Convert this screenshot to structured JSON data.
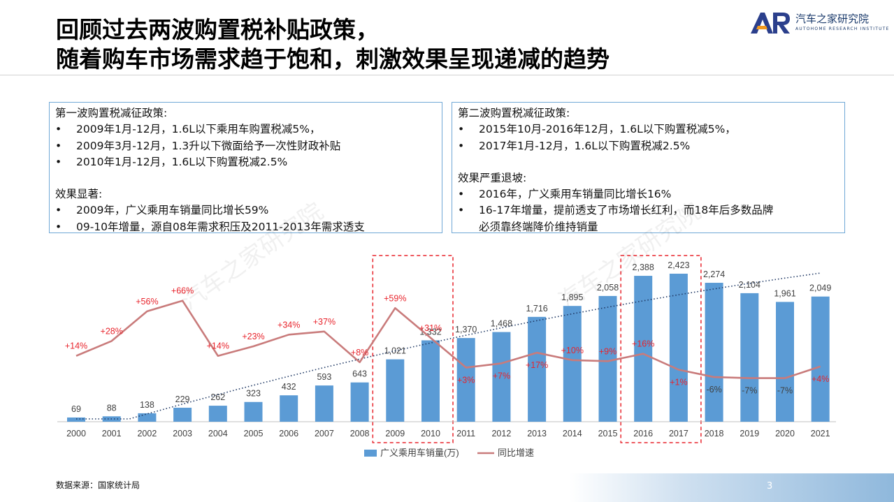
{
  "title": {
    "line1": "回顾过去两波购置税补贴政策，",
    "line2": "随着购车市场需求趋于饱和，刺激效果呈现递减的趋势"
  },
  "logo": {
    "mark": "AR",
    "name_cn": "汽车之家研究院",
    "name_en": "AUTOHOME RESEARCH INSTITUTE"
  },
  "watermark": "汽车之家研究院",
  "box1": {
    "heading": "第一波购置税减征政策:",
    "items": [
      "2009年1月-12月，1.6L以下乘用车购置税减5%，",
      "2009年3月-12月，1.3升以下微面给予一次性财政补贴",
      "2010年1月-12月，1.6L以下购置税减2.5%"
    ],
    "effect_heading": "效果显著:",
    "effect_items": [
      "2009年，广义乘用车销量同比增长59%",
      "09-10年增量，源自08年需求积压及2011-2013年需求透支"
    ]
  },
  "box2": {
    "heading": "第二波购置税减征政策:",
    "items": [
      "2015年10月-2016年12月，1.6L以下购置税减5%，",
      "2017年1月-12月，1.6L以下购置税减2.5%"
    ],
    "effect_heading": "效果严重退坡:",
    "effect_items": [
      "2016年，广义乘用车销量同比增长16%",
      "16-17年增量，提前透支了市场增长红利，而18年后多数品牌",
      "必须靠终端降价维持销量"
    ]
  },
  "bullet": "•",
  "chart_data": {
    "type": "bar",
    "categories": [
      "2000",
      "2001",
      "2002",
      "2003",
      "2004",
      "2005",
      "2006",
      "2007",
      "2008",
      "2009",
      "2010",
      "2011",
      "2012",
      "2013",
      "2014",
      "2015",
      "2016",
      "2017",
      "2018",
      "2019",
      "2020",
      "2021"
    ],
    "series": [
      {
        "name": "广义乘用车销量(万)",
        "type": "bar",
        "values": [
          69,
          88,
          138,
          229,
          262,
          323,
          432,
          593,
          643,
          1021,
          1332,
          1370,
          1468,
          1716,
          1895,
          2058,
          2388,
          2423,
          2274,
          2104,
          1961,
          2049
        ],
        "labels": [
          "69",
          "88",
          "138",
          "229",
          "262",
          "323",
          "432",
          "593",
          "643",
          "1,021",
          "1,332",
          "1,370",
          "1,468",
          "1,716",
          "1,895",
          "2,058",
          "2,388",
          "2,423",
          "2,274",
          "2,104",
          "1,961",
          "2,049"
        ],
        "color": "#5b9bd5"
      },
      {
        "name": "同比增速",
        "type": "line",
        "values": [
          14,
          28,
          56,
          66,
          14,
          23,
          34,
          37,
          8,
          59,
          31,
          3,
          7,
          17,
          10,
          9,
          16,
          1,
          -6,
          -7,
          -7,
          4
        ],
        "labels": [
          "+14%",
          "+28%",
          "+56%",
          "+66%",
          "+14%",
          "+23%",
          "+34%",
          "+37%",
          "+8%",
          "+59%",
          "+31%",
          "+3%",
          "+7%",
          "+17%",
          "+10%",
          "+9%",
          "+16%",
          "+1%",
          "-6%",
          "-7%",
          "-7%",
          "+4%"
        ],
        "color": "#c97b7b",
        "label_color": "#e8242c"
      }
    ],
    "trendline": "polynomial",
    "highlight_ranges": [
      [
        "2009",
        "2010"
      ],
      [
        "2016",
        "2017"
      ]
    ],
    "highlight_color": "#e8242c",
    "bar_color": "#5b9bd5",
    "line_color": "#c97b7b",
    "legend_position": "bottom"
  },
  "source": "数据来源：国家统计局",
  "page_number": "3"
}
